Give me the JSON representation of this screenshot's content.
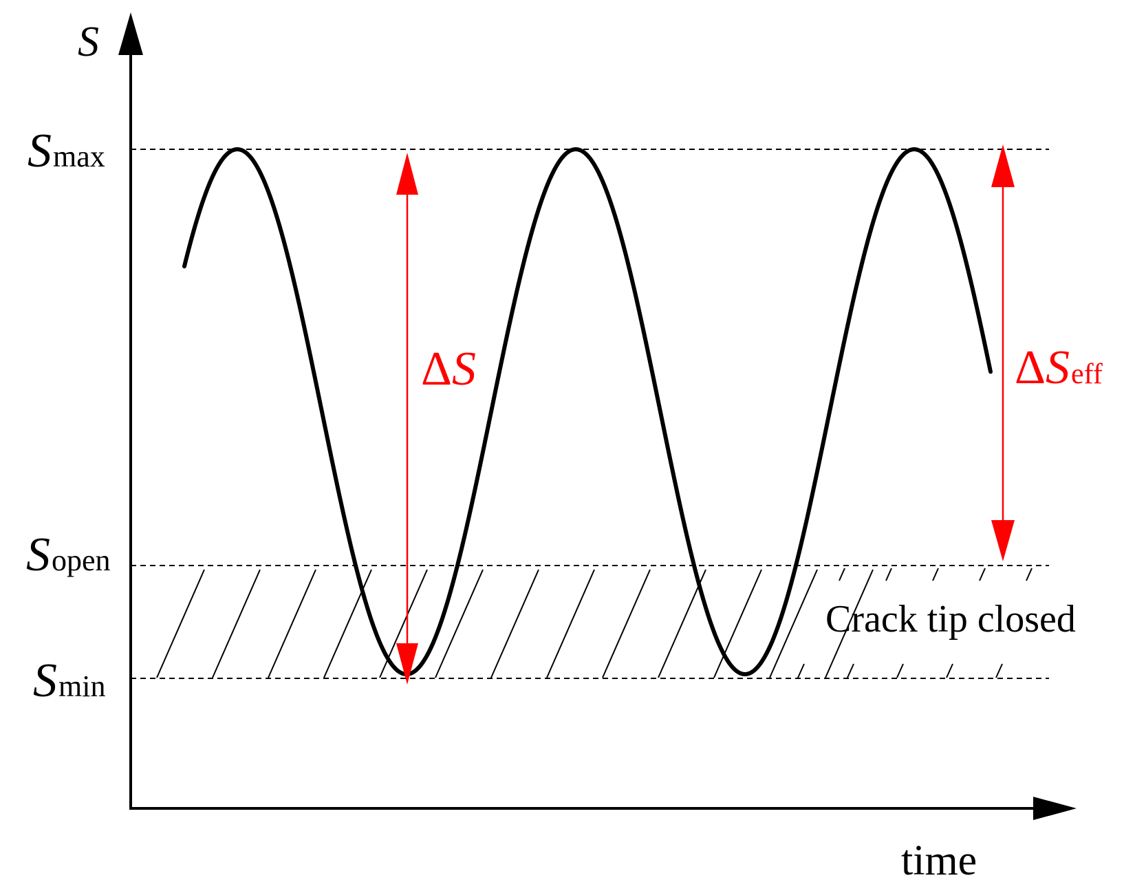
{
  "axes": {
    "y_symbol": "S",
    "x_label": "time"
  },
  "levels": {
    "max": {
      "symbol": "S",
      "subscript": "max"
    },
    "open": {
      "symbol": "S",
      "subscript": "open"
    },
    "min": {
      "symbol": "S",
      "subscript": "min"
    }
  },
  "annotations": {
    "delta_s": {
      "delta": "Δ",
      "symbol": "S"
    },
    "delta_s_eff": {
      "delta": "Δ",
      "symbol": "S",
      "subscript": "eff"
    },
    "closed_region": "Crack tip closed"
  },
  "colors": {
    "curve": "#000000",
    "range_arrows": "#ff0000",
    "dashed_lines": "#000000"
  }
}
